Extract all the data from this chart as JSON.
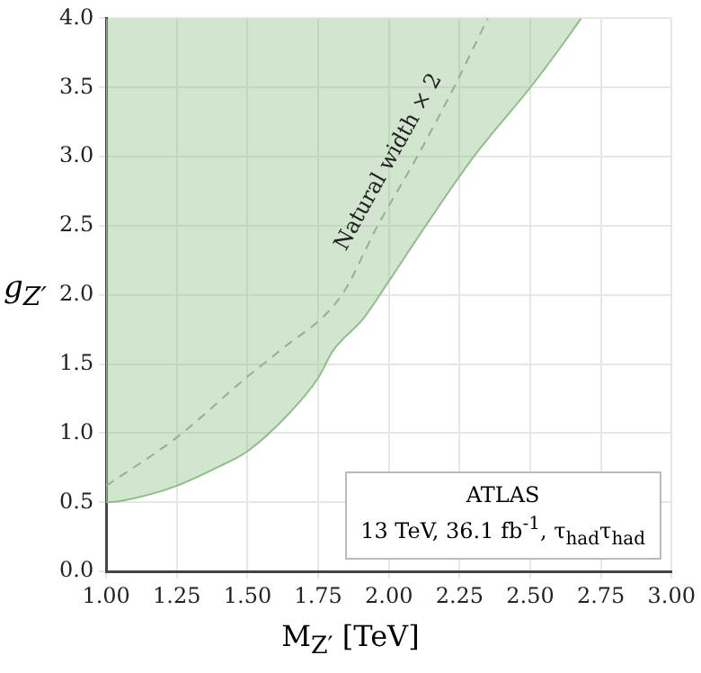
{
  "chart_data": {
    "type": "area",
    "xlabel": "M$_{Z′}$ [TeV]",
    "ylabel": "g$_{Z′}$",
    "xlim": [
      1.0,
      3.0
    ],
    "xticks": [
      {
        "value": 1,
        "label": "1.00"
      },
      {
        "value": 1.25,
        "label": "1.25"
      },
      {
        "value": 1.5,
        "label": "1.50"
      },
      {
        "value": 1.75,
        "label": "1.75"
      },
      {
        "value": 2,
        "label": "2.00"
      },
      {
        "value": 2.25,
        "label": "2.25"
      },
      {
        "value": 2.5,
        "label": "2.50"
      },
      {
        "value": 2.75,
        "label": "2.75"
      },
      {
        "value": 3,
        "label": "3.00"
      }
    ],
    "ylim": [
      0,
      4
    ],
    "yticks": [
      {
        "value": 0,
        "label": "0.0"
      },
      {
        "value": 0.5,
        "label": "0.5"
      },
      {
        "value": 1,
        "label": "1.0"
      },
      {
        "value": 1.5,
        "label": "1.5"
      },
      {
        "value": 2,
        "label": "2.0"
      },
      {
        "value": 2.5,
        "label": "2.5"
      },
      {
        "value": 3,
        "label": "3.0"
      },
      {
        "value": 3.5,
        "label": "3.5"
      },
      {
        "value": 4,
        "label": "4.0"
      }
    ],
    "grid": true,
    "legend": false,
    "series": [
      {
        "color": "#8fbf88",
        "x": [
          1.0,
          1.0,
          1.1,
          1.25,
          1.4,
          1.5,
          1.65,
          1.75,
          1.8,
          1.91,
          2.0,
          2.13,
          2.3,
          2.5,
          2.6,
          2.68
        ],
        "values": [
          4.0,
          0.5,
          0.53,
          0.62,
          0.76,
          0.87,
          1.15,
          1.4,
          1.59,
          1.83,
          2.1,
          2.5,
          3.0,
          3.5,
          3.77,
          4.0
        ]
      },
      {
        "type": "line",
        "color": "#a0a0a0",
        "line_style": "dashed",
        "x": [
          1.0,
          1.25,
          1.5,
          1.61,
          1.83,
          1.96,
          2.1,
          2.23,
          2.35
        ],
        "values": [
          0.62,
          0.97,
          1.41,
          1.59,
          1.99,
          2.5,
          3.0,
          3.5,
          4.0
        ]
      }
    ],
    "annotations": [
      "Natural width × 2",
      "ATLAS",
      "13 TeV, 36.1 fb$^{-1}$, τ$_{had}$τ$_{had}$"
    ]
  }
}
